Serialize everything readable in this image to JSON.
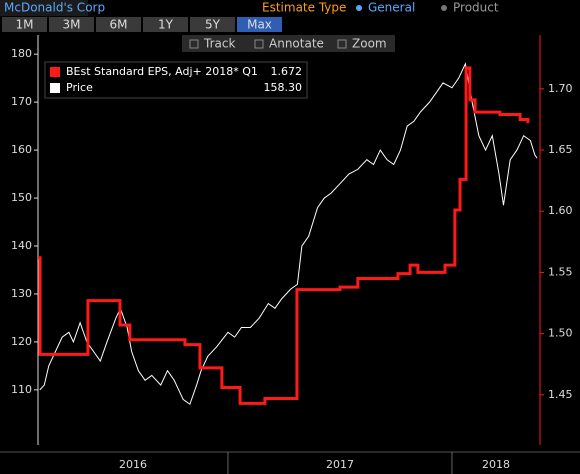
{
  "header": {
    "title": "McDonald's Corp",
    "estimate_label": "Estimate Type",
    "options": [
      "General",
      "Product"
    ],
    "selected_option": "General"
  },
  "periods": [
    "1M",
    "3M",
    "6M",
    "1Y",
    "5Y",
    "Max"
  ],
  "selected_period": "Max",
  "tools": [
    "Track",
    "Annotate",
    "Zoom"
  ],
  "chart_data": {
    "type": "line",
    "xlim": [
      2016.152,
      2018.393
    ],
    "xticks": [
      2016,
      2017,
      2018
    ],
    "ylim": [
      98.5,
      184.0
    ],
    "yticks": [
      110,
      120,
      130,
      140,
      150,
      160,
      170,
      180
    ],
    "y2lim": [
      1.409,
      1.744
    ],
    "y2ticks": [
      1.45,
      {
        "value": 1.5,
        "label": "1.50"
      },
      1.55,
      {
        "value": 1.6,
        "label": "1.60"
      },
      1.65,
      {
        "value": 1.7,
        "label": "1.70"
      }
    ],
    "series": [
      {
        "name": "BEst Standard EPS, Adj+ 2018* Q1",
        "legend_value": "1.672",
        "color": "#ff1a1a",
        "axis": "y2",
        "step": true,
        "x": [
          2016.152,
          2016.161,
          2016.375,
          2016.518,
          2016.562,
          2016.808,
          2016.875,
          2016.973,
          2017.054,
          2017.165,
          2017.308,
          2017.5,
          2017.58,
          2017.759,
          2017.813,
          2017.848,
          2017.969,
          2018.013,
          2018.036,
          2018.063,
          2018.08,
          2018.103,
          2018.214,
          2018.304,
          2018.339
        ],
        "values": [
          1.562,
          1.483,
          1.527,
          1.507,
          1.495,
          1.491,
          1.472,
          1.456,
          1.443,
          1.447,
          1.536,
          1.538,
          1.545,
          1.549,
          1.556,
          1.55,
          1.556,
          1.601,
          1.626,
          1.717,
          1.691,
          1.681,
          1.679,
          1.675,
          1.672
        ]
      },
      {
        "name": "Price",
        "legend_value": "158.30",
        "color": "#ffffff",
        "x": [
          2016.16,
          2016.18,
          2016.2,
          2016.23,
          2016.26,
          2016.29,
          2016.31,
          2016.34,
          2016.37,
          2016.4,
          2016.43,
          2016.46,
          2016.5,
          2016.52,
          2016.55,
          2016.57,
          2016.6,
          2016.63,
          2016.66,
          2016.7,
          2016.73,
          2016.76,
          2016.8,
          2016.83,
          2016.86,
          2016.88,
          2016.91,
          2016.95,
          2017.0,
          2017.03,
          2017.06,
          2017.1,
          2017.14,
          2017.18,
          2017.21,
          2017.24,
          2017.28,
          2017.31,
          2017.33,
          2017.36,
          2017.4,
          2017.43,
          2017.46,
          2017.5,
          2017.54,
          2017.58,
          2017.62,
          2017.65,
          2017.68,
          2017.71,
          2017.74,
          2017.77,
          2017.8,
          2017.83,
          2017.86,
          2017.9,
          2017.93,
          2017.96,
          2018.0,
          2018.03,
          2018.06,
          2018.09,
          2018.12,
          2018.15,
          2018.18,
          2018.21,
          2018.23,
          2018.26,
          2018.29,
          2018.32,
          2018.35,
          2018.37,
          2018.38
        ],
        "values": [
          110,
          111,
          115,
          118,
          121,
          122,
          120,
          124,
          120,
          118,
          116,
          120,
          125,
          127,
          123,
          118,
          114,
          112,
          113,
          111,
          114,
          112,
          108,
          107,
          111,
          114,
          117,
          119,
          122,
          121,
          123,
          123,
          125,
          128,
          127,
          129,
          131,
          132,
          140,
          142,
          148,
          150,
          151,
          153,
          155,
          156,
          158,
          157,
          160,
          158,
          157,
          160,
          165,
          166,
          168,
          170,
          172,
          174,
          173,
          175,
          178,
          170,
          163,
          160,
          163,
          155,
          148.5,
          158,
          160,
          163,
          162,
          159,
          158.3
        ]
      }
    ]
  }
}
